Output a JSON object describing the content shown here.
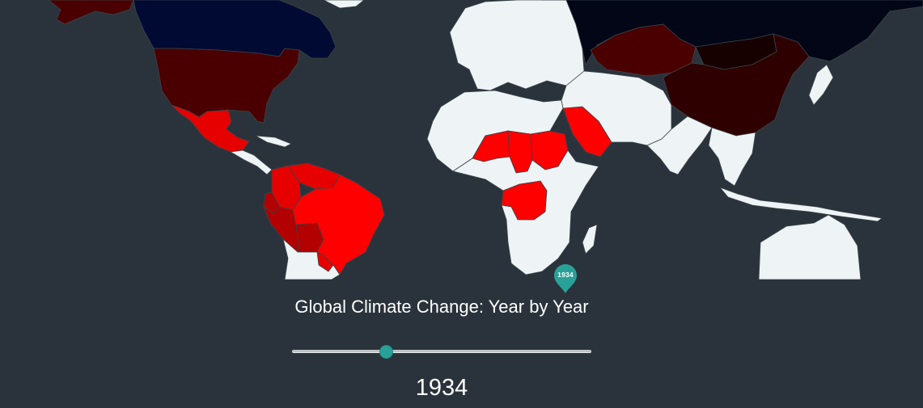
{
  "title": "Global Climate Change: Year by Year",
  "year": {
    "current": "1934",
    "marker_label": "1934",
    "slider_position": 0.315
  },
  "colors": {
    "background": "#2a333b",
    "no_data": "#eef4f5",
    "bright_red": "#ff0000",
    "red": "#e60000",
    "dark_red": "#b30000",
    "maroon": "#4a0000",
    "deep_maroon": "#2e0000",
    "near_black_red": "#170000",
    "navy": "#000a33",
    "dark_navy": "#020616",
    "accent": "#2aa198"
  },
  "regions": [
    {
      "name": "Alaska",
      "color": "maroon"
    },
    {
      "name": "Canada",
      "color": "navy"
    },
    {
      "name": "Greenland",
      "color": "no_data"
    },
    {
      "name": "United States",
      "color": "maroon"
    },
    {
      "name": "Mexico",
      "color": "red"
    },
    {
      "name": "Central America",
      "color": "no_data"
    },
    {
      "name": "Cuba",
      "color": "no_data"
    },
    {
      "name": "Venezuela",
      "color": "red"
    },
    {
      "name": "Colombia",
      "color": "red"
    },
    {
      "name": "Ecuador",
      "color": "dark_red"
    },
    {
      "name": "Peru",
      "color": "dark_red"
    },
    {
      "name": "Bolivia",
      "color": "dark_red"
    },
    {
      "name": "Brazil",
      "color": "bright_red"
    },
    {
      "name": "Paraguay",
      "color": "red"
    },
    {
      "name": "Southern South America",
      "color": "no_data"
    },
    {
      "name": "Europe",
      "color": "no_data"
    },
    {
      "name": "North Africa",
      "color": "no_data"
    },
    {
      "name": "Niger",
      "color": "bright_red"
    },
    {
      "name": "Chad",
      "color": "bright_red"
    },
    {
      "name": "Sudan",
      "color": "bright_red"
    },
    {
      "name": "Saudi Arabia",
      "color": "bright_red"
    },
    {
      "name": "DR Congo",
      "color": "bright_red"
    },
    {
      "name": "Southern Africa",
      "color": "no_data"
    },
    {
      "name": "Madagascar",
      "color": "no_data"
    },
    {
      "name": "Middle East and Central Asia",
      "color": "no_data"
    },
    {
      "name": "Russia",
      "color": "dark_navy"
    },
    {
      "name": "Kazakhstan",
      "color": "maroon"
    },
    {
      "name": "Mongolia",
      "color": "near_black_red"
    },
    {
      "name": "China",
      "color": "deep_maroon"
    },
    {
      "name": "India",
      "color": "no_data"
    },
    {
      "name": "Southeast Asia",
      "color": "no_data"
    },
    {
      "name": "Japan",
      "color": "no_data"
    },
    {
      "name": "Indonesia",
      "color": "no_data"
    },
    {
      "name": "Australia",
      "color": "no_data"
    }
  ]
}
